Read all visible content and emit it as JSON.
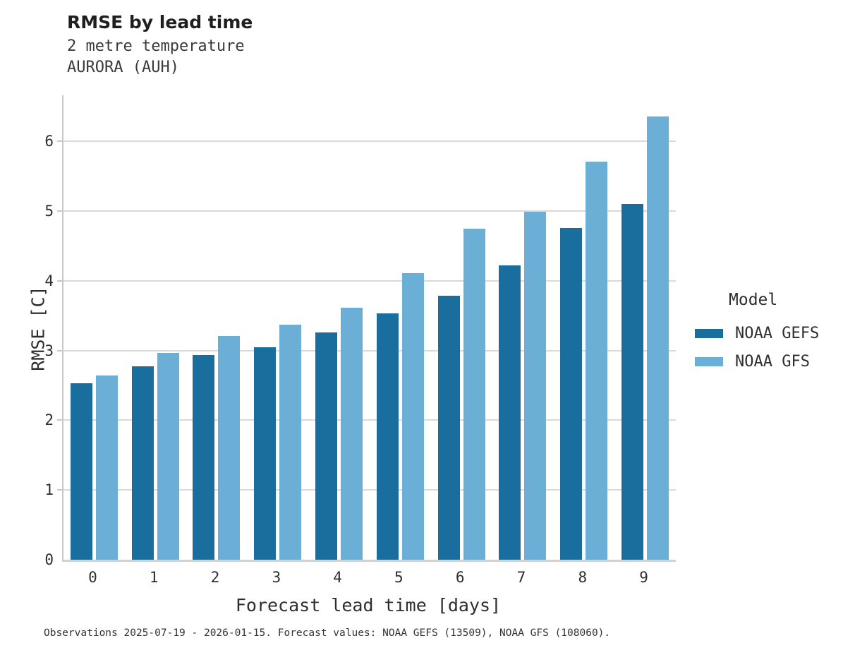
{
  "header": {
    "title": "RMSE by lead time",
    "subtitle_line1": "2 metre temperature",
    "subtitle_line2": "AURORA (AUH)"
  },
  "chart_data": {
    "type": "bar",
    "title": "RMSE by lead time",
    "subtitle": [
      "2 metre temperature",
      "AURORA (AUH)"
    ],
    "categories": [
      "0",
      "1",
      "2",
      "3",
      "4",
      "5",
      "6",
      "7",
      "8",
      "9"
    ],
    "series": [
      {
        "name": "NOAA GEFS",
        "color": "#1a6e9d",
        "values": [
          2.53,
          2.77,
          2.94,
          3.05,
          3.26,
          3.53,
          3.79,
          4.22,
          4.76,
          5.1
        ]
      },
      {
        "name": "NOAA GFS",
        "color": "#6cafd6",
        "values": [
          2.64,
          2.97,
          3.21,
          3.37,
          3.61,
          4.11,
          4.75,
          4.99,
          5.71,
          6.36
        ]
      }
    ],
    "xlabel": "Forecast lead time [days]",
    "ylabel": "RMSE [C]",
    "ylim": [
      0,
      6.66
    ],
    "yticks": [
      0,
      1,
      2,
      3,
      4,
      5,
      6
    ],
    "grid": true,
    "legend_position": "right"
  },
  "legend": {
    "title": "Model",
    "entries": [
      {
        "label": "NOAA GEFS",
        "color": "#1a6e9d"
      },
      {
        "label": "NOAA GFS",
        "color": "#6cafd6"
      }
    ]
  },
  "footer": {
    "text": "Observations 2025-07-19 - 2026-01-15. Forecast values: NOAA GEFS (13509), NOAA GFS (108060)."
  }
}
